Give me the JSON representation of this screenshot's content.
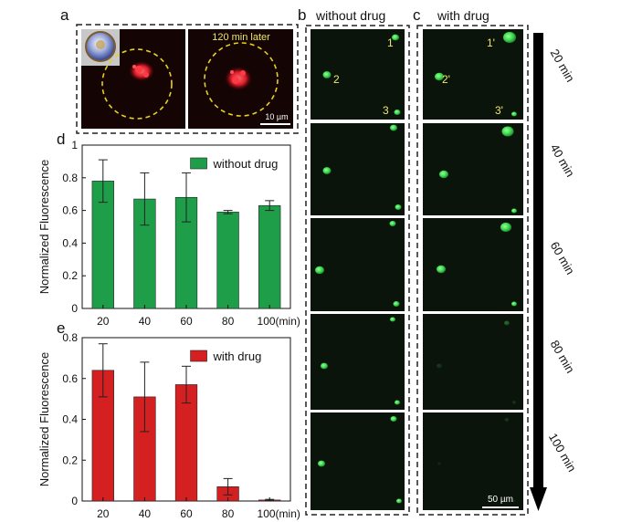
{
  "panels": {
    "a": {
      "letter": "a",
      "caption": "120 min later",
      "scale_bar": "10 µm"
    },
    "b": {
      "letter": "b",
      "title": "without drug",
      "cell_labels": [
        "1",
        "2",
        "3"
      ]
    },
    "c": {
      "letter": "c",
      "title": "with drug",
      "cell_labels": [
        "1'",
        "2'",
        "3'"
      ],
      "scale_bar": "50 µm"
    },
    "time_arrow": {
      "labels": [
        "20 min",
        "40 min",
        "60 min",
        "80 min",
        "100 min"
      ]
    },
    "d": {
      "letter": "d"
    },
    "e": {
      "letter": "e"
    }
  },
  "colors": {
    "green_bar": "#1f9e4a",
    "red_bar": "#d42020",
    "cell_green": "#39e052",
    "fluor_red": "#e8202a",
    "dashed_circle": "#e8d020",
    "label_yellow": "#ece86a",
    "micrograph_bg": "#0b140b"
  },
  "chart_data": [
    {
      "type": "bar",
      "panel": "d",
      "categories": [
        "20",
        "40",
        "60",
        "80",
        "100(min)"
      ],
      "series": [
        {
          "name": "without drug",
          "values": [
            0.78,
            0.67,
            0.68,
            0.59,
            0.63
          ],
          "errors": [
            0.13,
            0.16,
            0.15,
            0.01,
            0.03
          ]
        }
      ],
      "ylabel": "Normalized Fluorescence",
      "xlabel": "",
      "ylim": [
        0,
        1
      ],
      "yticks": [
        "0",
        "0.2",
        "0.4",
        "0.6",
        "0.8",
        "1"
      ],
      "legend": "top-right"
    },
    {
      "type": "bar",
      "panel": "e",
      "categories": [
        "20",
        "40",
        "60",
        "80",
        "100(min)"
      ],
      "series": [
        {
          "name": "with drug",
          "values": [
            0.64,
            0.51,
            0.57,
            0.07,
            0.005
          ],
          "errors": [
            0.13,
            0.17,
            0.09,
            0.04,
            0.003
          ]
        }
      ],
      "ylabel": "Normalized Fluorescence",
      "xlabel": "",
      "ylim": [
        0,
        0.8
      ],
      "yticks": [
        "0",
        "0.2",
        "0.4",
        "0.6",
        "0.8"
      ],
      "legend": "top-right"
    }
  ]
}
